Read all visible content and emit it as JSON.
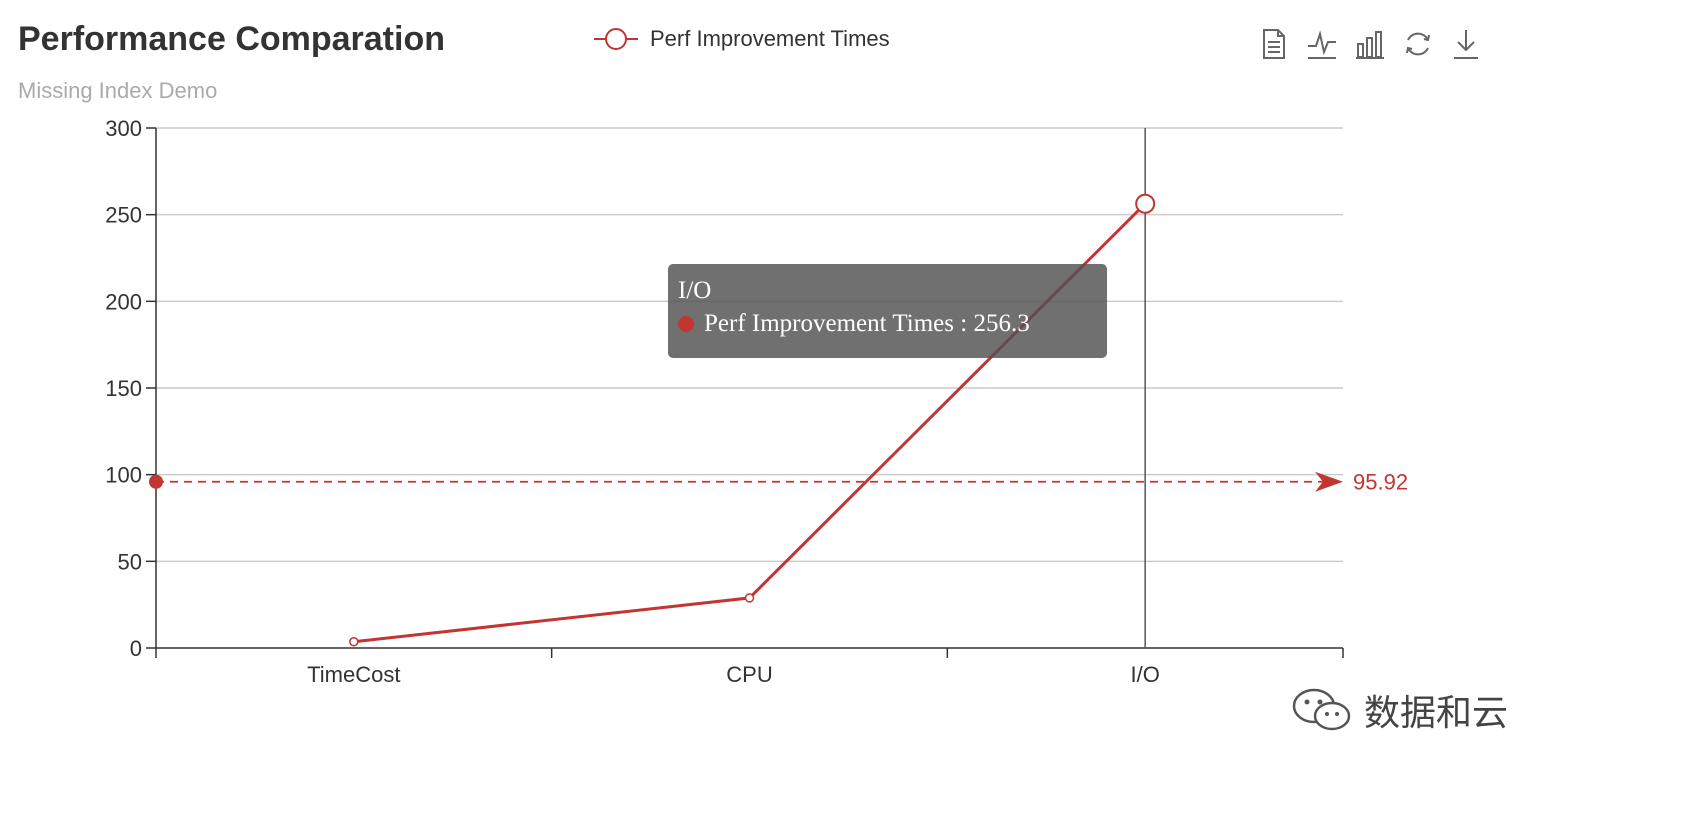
{
  "chart_data": {
    "type": "line",
    "title": "Performance Comparation",
    "subtitle": "Missing Index Demo",
    "categories": [
      "TimeCost",
      "CPU",
      "I/O"
    ],
    "series": [
      {
        "name": "Perf Improvement Times",
        "values": [
          3.6,
          28.9,
          256.3
        ],
        "color": "#c23531"
      }
    ],
    "ylim": [
      0,
      300
    ],
    "yticks": [
      0,
      50,
      100,
      150,
      200,
      250,
      300
    ],
    "grid": true,
    "legend_position": "top-center",
    "mark_line": {
      "type": "average",
      "value": 95.92,
      "label": "95.92"
    },
    "tooltip": {
      "category": "I/O",
      "series_name": "Perf Improvement Times",
      "value_text": "256.3",
      "separator": " : "
    }
  },
  "toolbox": {
    "icons": [
      "data-view-icon",
      "line-chart-icon",
      "bar-chart-icon",
      "restore-icon",
      "save-image-icon"
    ]
  },
  "watermark": {
    "text": "数据和云",
    "icon": "wechat-icon"
  },
  "colors": {
    "series": "#c23531",
    "axis": "#333333",
    "grid": "#cccccc",
    "title": "#333333",
    "subtitle": "#aaaaaa"
  }
}
